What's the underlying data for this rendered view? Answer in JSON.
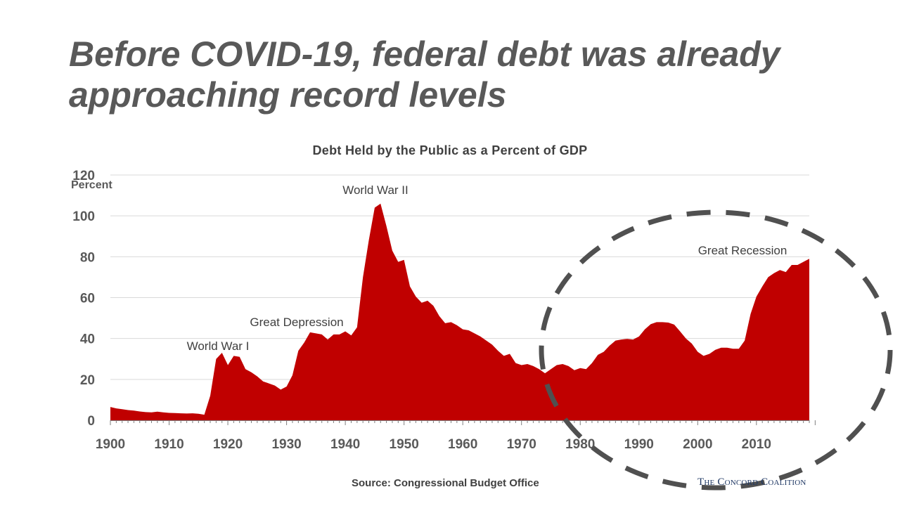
{
  "slide": {
    "title": "Before COVID-19, federal debt was already approaching record levels",
    "source": "Source: Congressional Budget Office",
    "logo_text": "The Concord Coalition"
  },
  "colors": {
    "area": "#c00000",
    "title": "#595959",
    "gridline": "#d9d9d9",
    "ellipse": "#505050"
  },
  "chart_data": {
    "type": "area",
    "title": "Debt Held by the Public as a Percent of GDP",
    "ylabel": "Percent",
    "xlabel": "",
    "xlim": [
      1900,
      2019
    ],
    "ylim": [
      0,
      120
    ],
    "grid": true,
    "legend": "none",
    "x_ticks": [
      1900,
      1910,
      1920,
      1930,
      1940,
      1950,
      1960,
      1970,
      1980,
      1990,
      2000,
      2010
    ],
    "y_ticks": [
      0,
      20,
      40,
      60,
      80,
      100,
      120
    ],
    "x": [
      1900,
      1901,
      1902,
      1903,
      1904,
      1905,
      1906,
      1907,
      1908,
      1909,
      1910,
      1911,
      1912,
      1913,
      1914,
      1915,
      1916,
      1917,
      1918,
      1919,
      1920,
      1921,
      1922,
      1923,
      1924,
      1925,
      1926,
      1927,
      1928,
      1929,
      1930,
      1931,
      1932,
      1933,
      1934,
      1935,
      1936,
      1937,
      1938,
      1939,
      1940,
      1941,
      1942,
      1943,
      1944,
      1945,
      1946,
      1947,
      1948,
      1949,
      1950,
      1951,
      1952,
      1953,
      1954,
      1955,
      1956,
      1957,
      1958,
      1959,
      1960,
      1961,
      1962,
      1963,
      1964,
      1965,
      1966,
      1967,
      1968,
      1969,
      1970,
      1971,
      1972,
      1973,
      1974,
      1975,
      1976,
      1977,
      1978,
      1979,
      1980,
      1981,
      1982,
      1983,
      1984,
      1985,
      1986,
      1987,
      1988,
      1989,
      1990,
      1991,
      1992,
      1993,
      1994,
      1995,
      1996,
      1997,
      1998,
      1999,
      2000,
      2001,
      2002,
      2003,
      2004,
      2005,
      2006,
      2007,
      2008,
      2009,
      2010,
      2011,
      2012,
      2013,
      2014,
      2015,
      2016,
      2017,
      2018,
      2019
    ],
    "values": [
      6.5,
      5.8,
      5.4,
      5.0,
      4.7,
      4.3,
      4.0,
      3.9,
      4.2,
      3.9,
      3.6,
      3.5,
      3.4,
      3.3,
      3.4,
      3.2,
      2.7,
      12.0,
      30.0,
      33.0,
      27.0,
      31.5,
      31.0,
      25.0,
      23.5,
      21.5,
      19.0,
      18.0,
      17.0,
      15.0,
      16.5,
      22.0,
      34.0,
      38.0,
      43.0,
      42.5,
      42.0,
      39.5,
      42.0,
      42.0,
      43.5,
      41.5,
      45.5,
      70.0,
      88.0,
      104.0,
      106.0,
      95.0,
      83.0,
      77.5,
      78.5,
      65.5,
      60.5,
      57.5,
      58.5,
      56.0,
      51.0,
      47.5,
      48.0,
      46.5,
      44.5,
      44.0,
      42.5,
      41.0,
      39.0,
      37.0,
      34.0,
      31.5,
      32.5,
      28.0,
      27.0,
      27.5,
      26.5,
      25.0,
      23.0,
      25.0,
      27.0,
      27.5,
      26.5,
      24.5,
      25.5,
      25.0,
      28.0,
      32.0,
      33.5,
      36.5,
      39.0,
      39.5,
      39.8,
      39.5,
      41.0,
      44.5,
      47.0,
      48.0,
      48.0,
      47.8,
      46.8,
      43.5,
      40.0,
      37.5,
      33.5,
      31.5,
      32.5,
      34.5,
      35.5,
      35.5,
      35.0,
      35.0,
      39.0,
      52.0,
      60.5,
      65.5,
      70.0,
      72.0,
      73.5,
      72.5,
      76.0,
      76.0,
      77.5,
      79.0
    ],
    "annotations": [
      "World War I",
      "Great Depression",
      "World War II",
      "Great Recession"
    ]
  }
}
